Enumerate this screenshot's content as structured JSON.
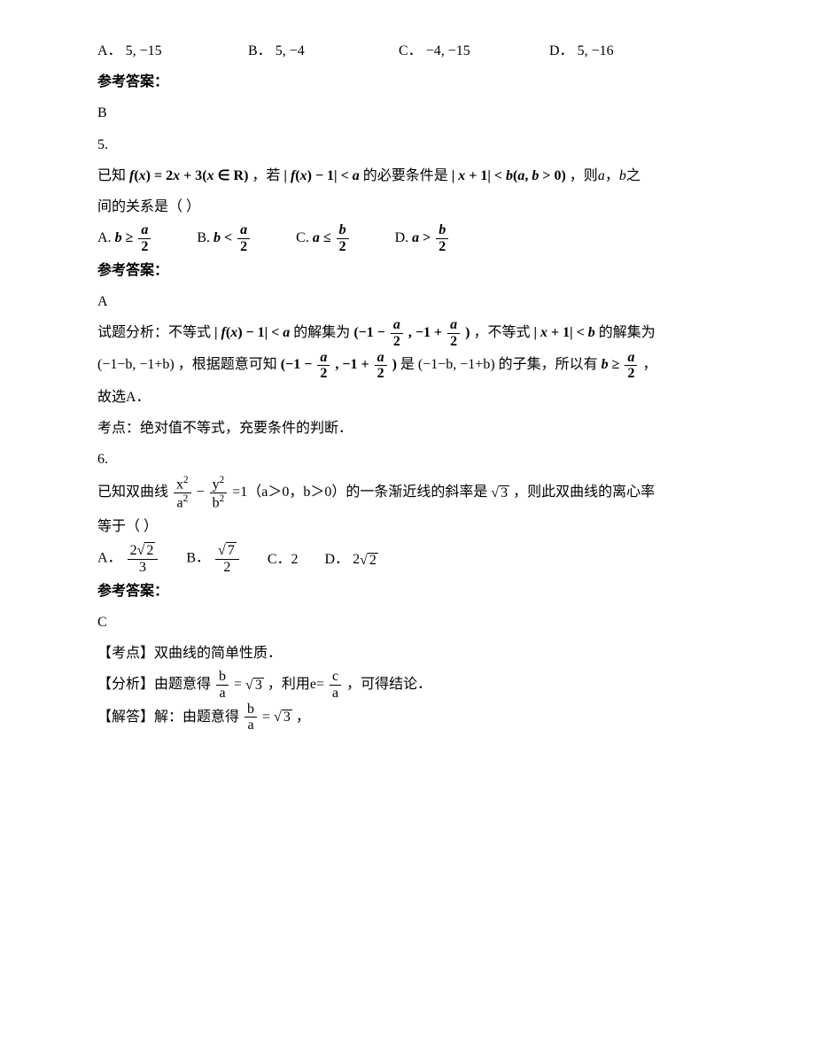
{
  "q4": {
    "choices": {
      "A_label": "A．",
      "A_val": "5, −15",
      "B_label": "B．",
      "B_val": "5, −4",
      "C_label": "C．",
      "C_val": "−4, −15",
      "D_label": "D．",
      "D_val": "5, −16"
    },
    "ans_header": "参考答案：",
    "ans": "B"
  },
  "q5": {
    "num": "5.",
    "stem_l1_a": "已知",
    "stem_l1_fx": "f(x) = 2x + 3 (x ∈ R)",
    "stem_l1_b": "，若",
    "stem_l1_abs1": "| f(x) − 1 | < a",
    "stem_l1_c": "的必要条件是",
    "stem_l1_abs2": "| x + 1 | < b (a, b > 0)",
    "stem_l1_d": "，则",
    "stem_l1_e": "a",
    "stem_l1_f": "，",
    "stem_l1_g": "b",
    "stem_l1_h": "之",
    "stem_l2": "间的关系是（    ）",
    "choices": {
      "A_label": "A.",
      "B_label": "B.",
      "C_label": "C.",
      "D_label": "D."
    },
    "ans_header": "参考答案：",
    "ans": "A",
    "expl_prefix": "试题分析：不等式",
    "expl_a1": "| f(x) − 1 | < a",
    "expl_a2": "的解集为",
    "expl_a3": "，不等式",
    "expl_a3b": "| x + 1 | < b",
    "expl_a4": "的解集为",
    "expl_b0": "(−1−b, −1+b)",
    "expl_b1": "，根据题意可知",
    "expl_b2": "是",
    "expl_b2b": "(−1−b, −1+b)",
    "expl_b3": "的子集，所以有",
    "expl_b4": "，",
    "expl_c": "故选A．",
    "kaodian": "考点：绝对值不等式，充要条件的判断．",
    "frac_a_2_num": "a",
    "frac_a_2_den": "2",
    "frac_b_2_num": "b",
    "frac_b_2_den": "2"
  },
  "q6": {
    "num": "6.",
    "stem_a": "已知双曲线",
    "stem_b": "=1（a＞0，b＞0）的一条渐近线的斜率是",
    "stem_sqrt3": "3",
    "stem_c": "，则此双曲线的离心率",
    "stem_d": "等于（    ）",
    "choices": {
      "A_label": "A．",
      "B_label": "B．",
      "C_label": "C．2",
      "D_label": "D．",
      "A_num": "2",
      "A_rad": "2",
      "A_den": "3",
      "B_rad": "7",
      "B_den": "2",
      "D_coef": "2",
      "D_rad": "2"
    },
    "ans_header": "参考答案：",
    "ans": "C",
    "kaodian": "【考点】双曲线的简单性质．",
    "fenxi_a": "【分析】由题意得",
    "fenxi_b": "=",
    "fenxi_c": "，利用e=",
    "fenxi_d": "，可得结论．",
    "jieda_a": "【解答】解：由题意得",
    "jieda_b": "=",
    "jieda_c": "，",
    "frac_ba_num": "b",
    "frac_ba_den": "a",
    "frac_ca_num": "c",
    "frac_ca_den": "a",
    "hyper_x2": "x",
    "hyper_a2": "a",
    "hyper_y2": "y",
    "hyper_b2": "b",
    "sup2": "2"
  },
  "style": {
    "text_color": "#000000",
    "bg_color": "#ffffff",
    "font_size_body": 16,
    "font_family_cn": "SimSun",
    "font_family_math": "Times New Roman",
    "line_height": 2.2
  }
}
